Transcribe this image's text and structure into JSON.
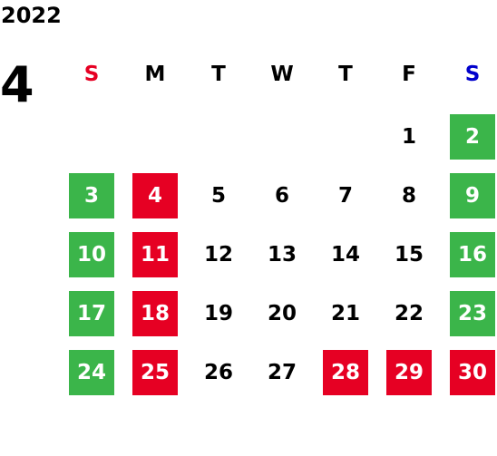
{
  "calendar": {
    "year": "2022",
    "month": "4",
    "weekdays": [
      {
        "label": "S",
        "color": "#e60023"
      },
      {
        "label": "M",
        "color": "#000000"
      },
      {
        "label": "T",
        "color": "#000000"
      },
      {
        "label": "W",
        "color": "#000000"
      },
      {
        "label": "T",
        "color": "#000000"
      },
      {
        "label": "F",
        "color": "#000000"
      },
      {
        "label": "S",
        "color": "#0000cc"
      }
    ],
    "weeks": [
      [
        {
          "day": "",
          "style": "blank"
        },
        {
          "day": "",
          "style": "blank"
        },
        {
          "day": "",
          "style": "blank"
        },
        {
          "day": "",
          "style": "blank"
        },
        {
          "day": "",
          "style": "blank"
        },
        {
          "day": "1",
          "style": "plain"
        },
        {
          "day": "2",
          "style": "green"
        }
      ],
      [
        {
          "day": "3",
          "style": "green"
        },
        {
          "day": "4",
          "style": "red"
        },
        {
          "day": "5",
          "style": "plain"
        },
        {
          "day": "6",
          "style": "plain"
        },
        {
          "day": "7",
          "style": "plain"
        },
        {
          "day": "8",
          "style": "plain"
        },
        {
          "day": "9",
          "style": "green"
        }
      ],
      [
        {
          "day": "10",
          "style": "green"
        },
        {
          "day": "11",
          "style": "red"
        },
        {
          "day": "12",
          "style": "plain"
        },
        {
          "day": "13",
          "style": "plain"
        },
        {
          "day": "14",
          "style": "plain"
        },
        {
          "day": "15",
          "style": "plain"
        },
        {
          "day": "16",
          "style": "green"
        }
      ],
      [
        {
          "day": "17",
          "style": "green"
        },
        {
          "day": "18",
          "style": "red"
        },
        {
          "day": "19",
          "style": "plain"
        },
        {
          "day": "20",
          "style": "plain"
        },
        {
          "day": "21",
          "style": "plain"
        },
        {
          "day": "22",
          "style": "plain"
        },
        {
          "day": "23",
          "style": "green"
        }
      ],
      [
        {
          "day": "24",
          "style": "green"
        },
        {
          "day": "25",
          "style": "red"
        },
        {
          "day": "26",
          "style": "plain"
        },
        {
          "day": "27",
          "style": "plain"
        },
        {
          "day": "28",
          "style": "red"
        },
        {
          "day": "29",
          "style": "red"
        },
        {
          "day": "30",
          "style": "red"
        }
      ]
    ],
    "colors": {
      "green": "#3bb54a",
      "red": "#e60023",
      "sunday": "#e60023",
      "saturday": "#0000cc"
    }
  }
}
